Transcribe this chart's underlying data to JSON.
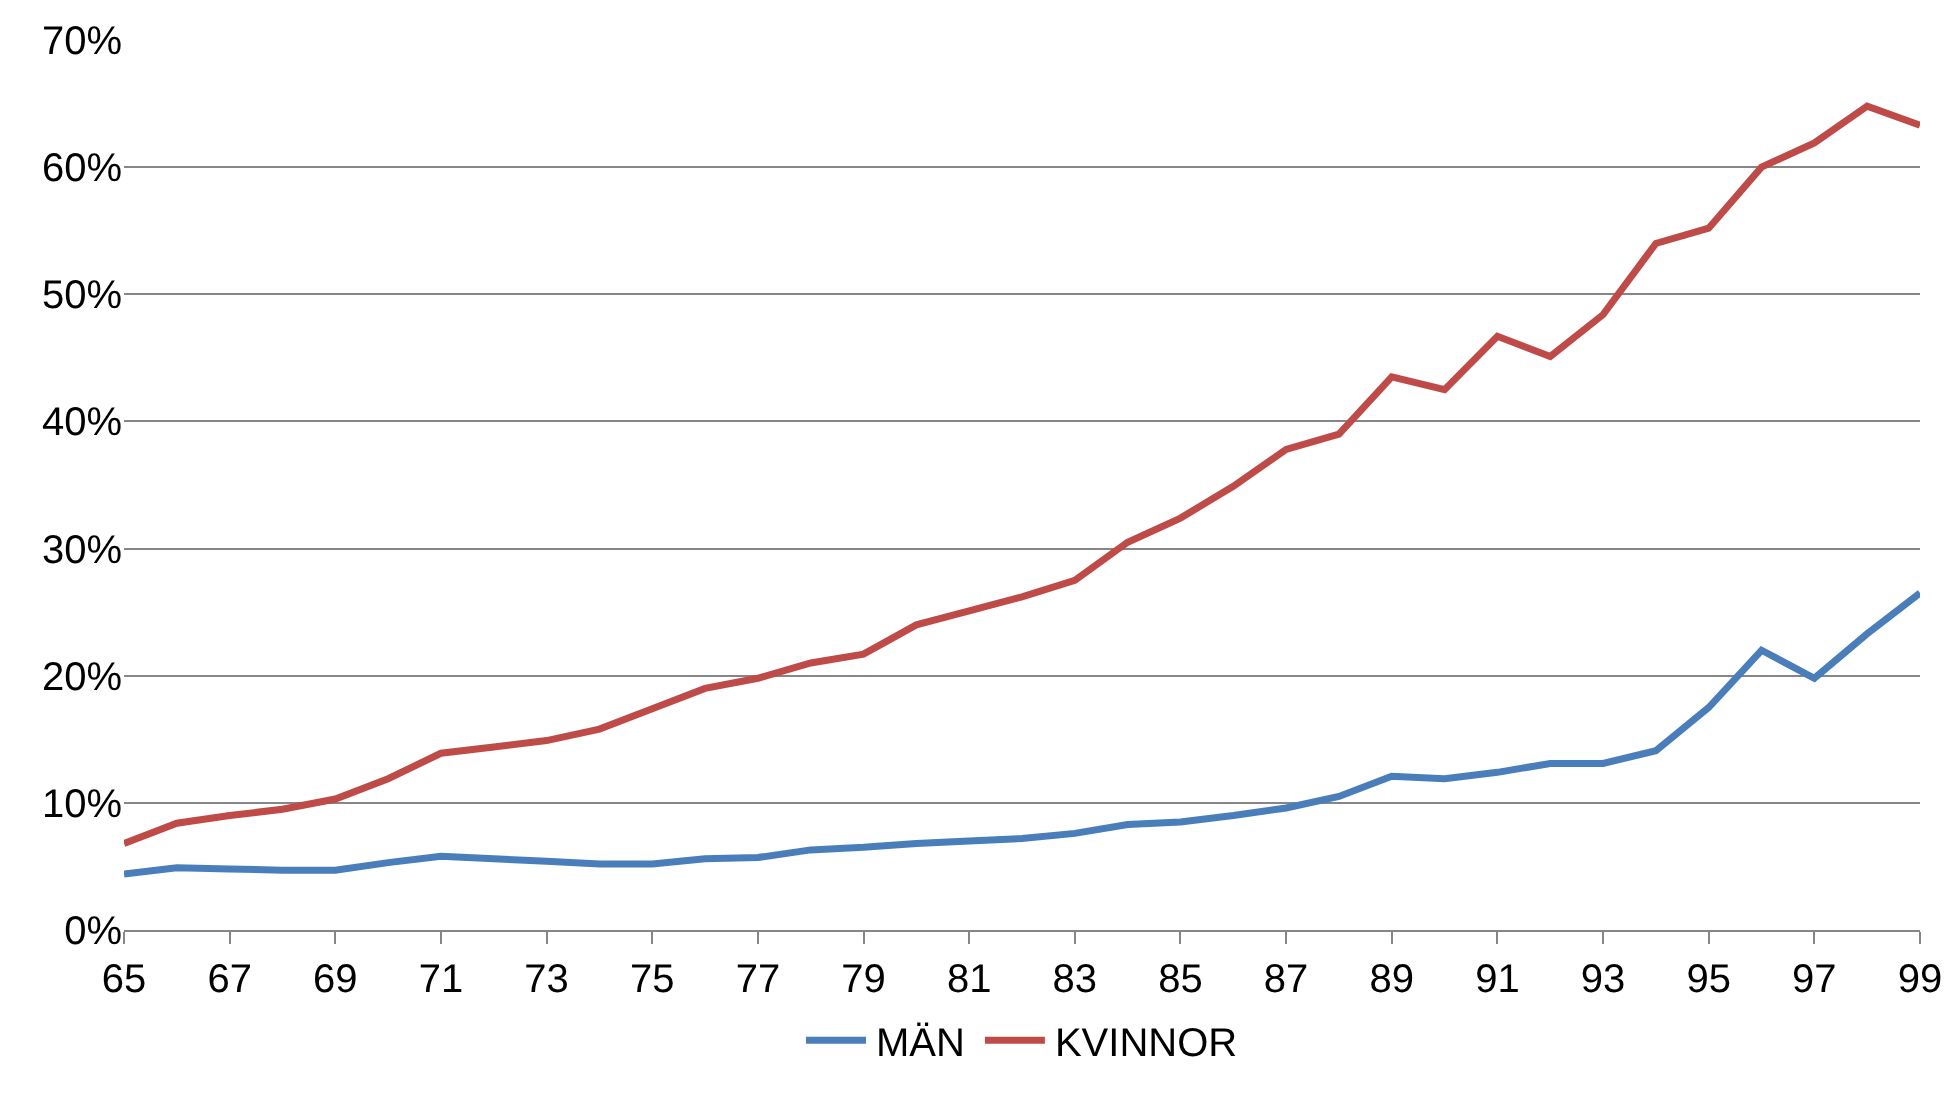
{
  "chart_data": {
    "type": "line",
    "x": [
      65,
      66,
      67,
      68,
      69,
      70,
      71,
      72,
      73,
      74,
      75,
      76,
      77,
      78,
      79,
      80,
      81,
      82,
      83,
      84,
      85,
      86,
      87,
      88,
      89,
      90,
      91,
      92,
      93,
      94,
      95,
      96,
      97,
      98,
      99
    ],
    "series": [
      {
        "name": "MÄN",
        "color": "#4a7ebb",
        "values": [
          4.4,
          4.9,
          4.8,
          4.7,
          4.7,
          5.3,
          5.8,
          5.6,
          5.4,
          5.2,
          5.2,
          5.6,
          5.7,
          6.3,
          6.5,
          6.8,
          7.0,
          7.2,
          7.6,
          8.3,
          8.5,
          9.0,
          9.6,
          10.5,
          12.1,
          11.9,
          12.4,
          13.1,
          13.1,
          14.1,
          17.5,
          22.0,
          19.8,
          23.3,
          26.5
        ]
      },
      {
        "name": "KVINNOR",
        "color": "#be4b48",
        "values": [
          6.8,
          8.4,
          9.0,
          9.5,
          10.3,
          11.9,
          13.9,
          14.4,
          14.9,
          15.8,
          17.4,
          19.0,
          19.8,
          21.0,
          21.7,
          24.0,
          25.1,
          26.2,
          27.5,
          30.5,
          32.4,
          34.9,
          37.8,
          39.0,
          43.5,
          42.5,
          46.7,
          45.1,
          48.4,
          54.0,
          55.2,
          60.0,
          61.9,
          64.8,
          63.3
        ]
      }
    ],
    "xlim": [
      65,
      99
    ],
    "xticks": [
      65,
      67,
      69,
      71,
      73,
      75,
      77,
      79,
      81,
      83,
      85,
      87,
      89,
      91,
      93,
      95,
      97,
      99
    ],
    "ylim": [
      0,
      70
    ],
    "yticks": [
      {
        "value": 0,
        "label": "0%"
      },
      {
        "value": 10,
        "label": "10%"
      },
      {
        "value": 20,
        "label": "20%"
      },
      {
        "value": 30,
        "label": "30%"
      },
      {
        "value": 40,
        "label": "40%"
      },
      {
        "value": 50,
        "label": "50%"
      },
      {
        "value": 60,
        "label": "60%"
      },
      {
        "value": 70,
        "label": "70%"
      }
    ],
    "grid": "y",
    "legend": "bottom",
    "marker": "none",
    "line_style": "solid"
  }
}
